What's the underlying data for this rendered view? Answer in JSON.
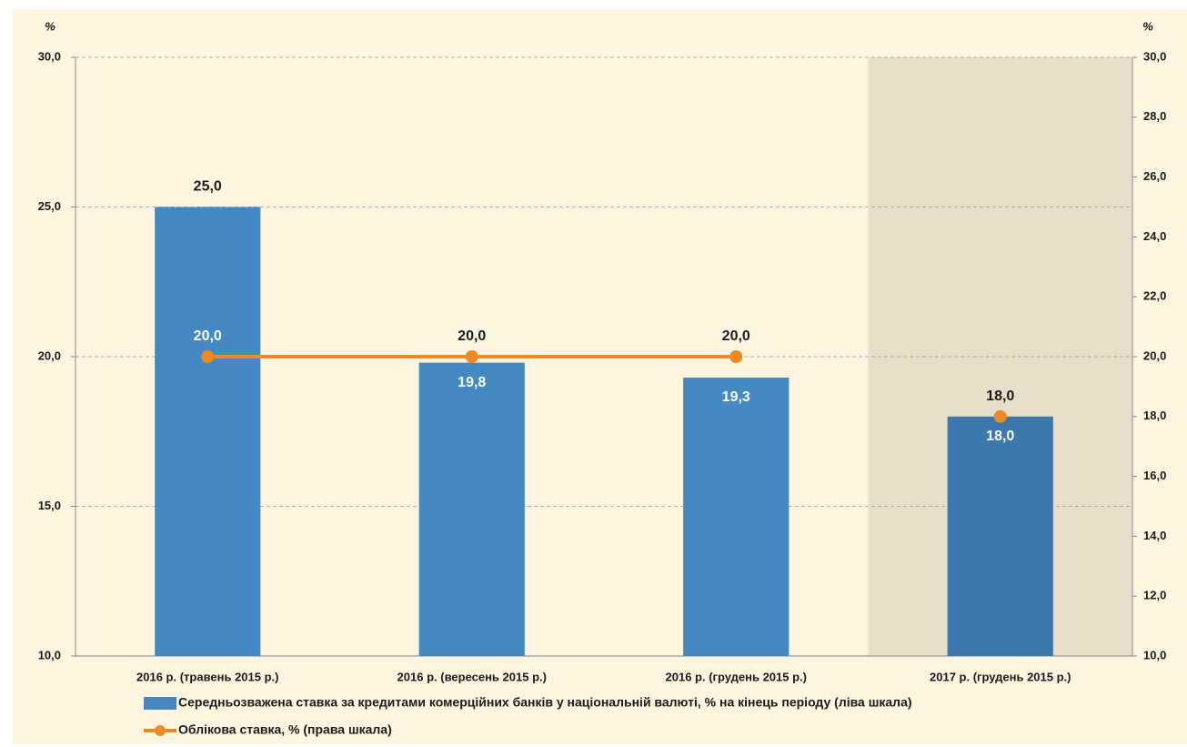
{
  "chart_data": {
    "type": "bar",
    "y_unit": "%",
    "y2_unit": "%",
    "categories": [
      "2016 р. (травень 2015 р.)",
      "2016 р. (вересень 2015 р.)",
      "2016 р. (грудень 2015 р.)",
      "2017 р. (грудень 2015 р.)"
    ],
    "shaded_categories": [
      3
    ],
    "series": [
      {
        "name": "Середньозважена ставка за кредитами комерційних банків у національній валюті, % на кінець періоду (ліва шкала)",
        "type": "bar",
        "color": "#4589c2",
        "colors": [
          "#4589c2",
          "#4589c2",
          "#4589c2",
          "#3a78ad"
        ],
        "values": [
          25.0,
          19.8,
          19.3,
          18.0
        ],
        "value_labels": [
          "25,0",
          "19,8",
          "19,3",
          "18,0"
        ]
      },
      {
        "name": "Облікова ставка, % (права шкала)",
        "type": "line",
        "axis": "y2",
        "color": "#ec8a23",
        "values": [
          20.0,
          20.0,
          20.0,
          18.0
        ],
        "value_labels": [
          "20,0",
          "20,0",
          "20,0",
          "18,0"
        ]
      }
    ],
    "ylim": [
      10,
      30
    ],
    "yticks": [
      {
        "value": 10,
        "label": "10,0"
      },
      {
        "value": 15,
        "label": "15,0"
      },
      {
        "value": 20,
        "label": "20,0"
      },
      {
        "value": 25,
        "label": "25,0"
      },
      {
        "value": 30,
        "label": "30,0"
      }
    ],
    "y2lim": [
      10,
      30
    ],
    "y2ticks": [
      {
        "value": 10,
        "label": "10,0"
      },
      {
        "value": 12,
        "label": "12,0"
      },
      {
        "value": 14,
        "label": "14,0"
      },
      {
        "value": 16,
        "label": "16,0"
      },
      {
        "value": 18,
        "label": "18,0"
      },
      {
        "value": 20,
        "label": "20,0"
      },
      {
        "value": 22,
        "label": "22,0"
      },
      {
        "value": 24,
        "label": "24,0"
      },
      {
        "value": 26,
        "label": "26,0"
      },
      {
        "value": 28,
        "label": "28,0"
      },
      {
        "value": 30,
        "label": "30,0"
      }
    ],
    "grid": true,
    "legend": "bottom"
  }
}
